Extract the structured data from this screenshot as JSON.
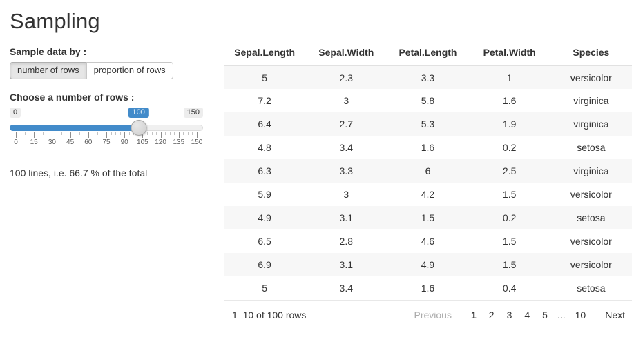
{
  "title": "Sampling",
  "accent_color": "#428bca",
  "stripe_color": "#f7f7f7",
  "sidebar": {
    "sample_by": {
      "label": "Sample data by :",
      "options": [
        {
          "label": "number of rows",
          "active": true
        },
        {
          "label": "proportion of rows",
          "active": false
        }
      ]
    },
    "slider": {
      "label": "Choose a number of rows :",
      "min": 0,
      "max": 150,
      "value": 100,
      "min_label": "0",
      "max_label": "150",
      "value_label": "100",
      "tick_labels": [
        "0",
        "15",
        "30",
        "45",
        "60",
        "75",
        "90",
        "105",
        "120",
        "135",
        "150"
      ]
    },
    "summary": "100 lines, i.e. 66.7 % of the total"
  },
  "table": {
    "columns": [
      "Sepal.Length",
      "Sepal.Width",
      "Petal.Length",
      "Petal.Width",
      "Species"
    ],
    "rows": [
      [
        "5",
        "2.3",
        "3.3",
        "1",
        "versicolor"
      ],
      [
        "7.2",
        "3",
        "5.8",
        "1.6",
        "virginica"
      ],
      [
        "6.4",
        "2.7",
        "5.3",
        "1.9",
        "virginica"
      ],
      [
        "4.8",
        "3.4",
        "1.6",
        "0.2",
        "setosa"
      ],
      [
        "6.3",
        "3.3",
        "6",
        "2.5",
        "virginica"
      ],
      [
        "5.9",
        "3",
        "4.2",
        "1.5",
        "versicolor"
      ],
      [
        "4.9",
        "3.1",
        "1.5",
        "0.2",
        "setosa"
      ],
      [
        "6.5",
        "2.8",
        "4.6",
        "1.5",
        "versicolor"
      ],
      [
        "6.9",
        "3.1",
        "4.9",
        "1.5",
        "versicolor"
      ],
      [
        "5",
        "3.4",
        "1.6",
        "0.4",
        "setosa"
      ]
    ],
    "footer": {
      "info": "1–10 of 100 rows",
      "previous_label": "Previous",
      "next_label": "Next",
      "pages": [
        "1",
        "2",
        "3",
        "4",
        "5",
        "...",
        "10"
      ],
      "current_page": "1"
    }
  }
}
